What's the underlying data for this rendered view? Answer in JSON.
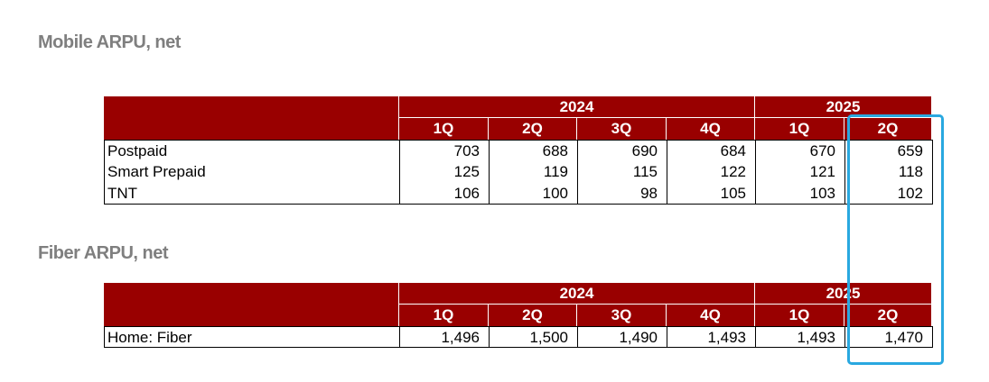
{
  "sections": [
    {
      "title": "Mobile ARPU, net",
      "years": [
        "2024",
        "2025"
      ],
      "quarters": [
        "1Q",
        "2Q",
        "3Q",
        "4Q",
        "1Q",
        "2Q"
      ],
      "rows": [
        {
          "label": "Postpaid",
          "values": [
            "703",
            "688",
            "690",
            "684",
            "670",
            "659"
          ]
        },
        {
          "label": "Smart Prepaid",
          "values": [
            "125",
            "119",
            "115",
            "122",
            "121",
            "118"
          ]
        },
        {
          "label": "TNT",
          "values": [
            "106",
            "100",
            "98",
            "105",
            "103",
            "102"
          ]
        }
      ]
    },
    {
      "title": "Fiber ARPU, net",
      "years": [
        "2024",
        "2025"
      ],
      "quarters": [
        "1Q",
        "2Q",
        "3Q",
        "4Q",
        "1Q",
        "2Q"
      ],
      "rows": [
        {
          "label": "Home: Fiber",
          "values": [
            "1,496",
            "1,500",
            "1,490",
            "1,493",
            "1,493",
            "1,470"
          ]
        }
      ]
    }
  ]
}
